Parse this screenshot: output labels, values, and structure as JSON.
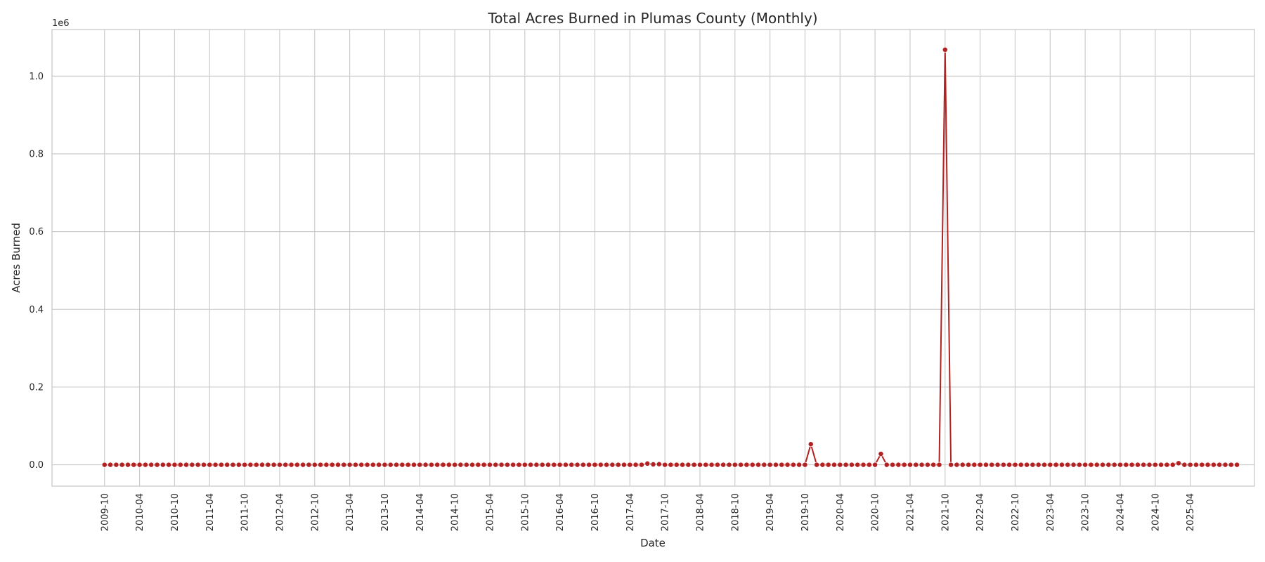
{
  "chart_data": {
    "type": "line",
    "title": "Total Acres Burned in Plumas County (Monthly)",
    "xlabel": "Date",
    "ylabel": "Acres Burned",
    "y_offset_label": "1e6",
    "y_scale": 1000000,
    "ylim": [
      -55000,
      1120000
    ],
    "y_ticks": [
      0,
      200000,
      400000,
      600000,
      800000,
      1000000
    ],
    "y_tick_labels": [
      "0.0",
      "0.2",
      "0.4",
      "0.6",
      "0.8",
      "1.0"
    ],
    "x_start": "2009-10",
    "x_end": "2025-06",
    "xlim": [
      "2009-01",
      "2026-03"
    ],
    "x_ticks": [
      "2009-10",
      "2010-04",
      "2010-10",
      "2011-04",
      "2011-10",
      "2012-04",
      "2012-10",
      "2013-04",
      "2013-10",
      "2014-04",
      "2014-10",
      "2015-04",
      "2015-10",
      "2016-04",
      "2016-10",
      "2017-04",
      "2017-10",
      "2018-04",
      "2018-10",
      "2019-04",
      "2019-10",
      "2020-04",
      "2020-10",
      "2021-04",
      "2021-10",
      "2022-04",
      "2022-10",
      "2023-04",
      "2023-10",
      "2024-04",
      "2024-10",
      "2025-04"
    ],
    "series": [
      {
        "values": [
          0,
          0,
          0,
          0,
          0,
          0,
          0,
          0,
          0,
          0,
          0,
          0,
          0,
          0,
          0,
          0,
          0,
          0,
          0,
          0,
          0,
          0,
          0,
          0,
          0,
          0,
          0,
          0,
          0,
          0,
          0,
          0,
          0,
          0,
          0,
          0,
          0,
          0,
          0,
          0,
          0,
          0,
          0,
          0,
          0,
          0,
          0,
          0,
          0,
          0,
          0,
          0,
          0,
          0,
          0,
          0,
          0,
          0,
          0,
          0,
          0,
          0,
          0,
          0,
          0,
          0,
          0,
          0,
          0,
          0,
          0,
          0,
          0,
          0,
          0,
          0,
          0,
          0,
          0,
          0,
          0,
          0,
          0,
          0,
          0,
          0,
          0,
          0,
          0,
          0,
          0,
          0,
          0,
          3000,
          1000,
          1500,
          0,
          0,
          0,
          0,
          0,
          0,
          0,
          0,
          0,
          0,
          0,
          0,
          0,
          0,
          0,
          0,
          0,
          0,
          0,
          0,
          0,
          0,
          0,
          0,
          0,
          53000,
          0,
          0,
          0,
          0,
          0,
          0,
          0,
          0,
          0,
          0,
          0,
          28000,
          0,
          0,
          0,
          0,
          0,
          0,
          0,
          0,
          0,
          0,
          1068000,
          0,
          0,
          0,
          0,
          0,
          0,
          0,
          0,
          0,
          0,
          0,
          0,
          0,
          0,
          0,
          0,
          0,
          0,
          0,
          0,
          0,
          0,
          0,
          0,
          0,
          0,
          0,
          0,
          0,
          0,
          0,
          0,
          0,
          0,
          0,
          0,
          0,
          0,
          0,
          4000,
          0,
          0,
          0,
          0,
          0,
          0,
          0,
          0,
          0,
          0
        ]
      }
    ],
    "grid": true,
    "color": "#b22222",
    "grid_color": "#cccccc"
  }
}
